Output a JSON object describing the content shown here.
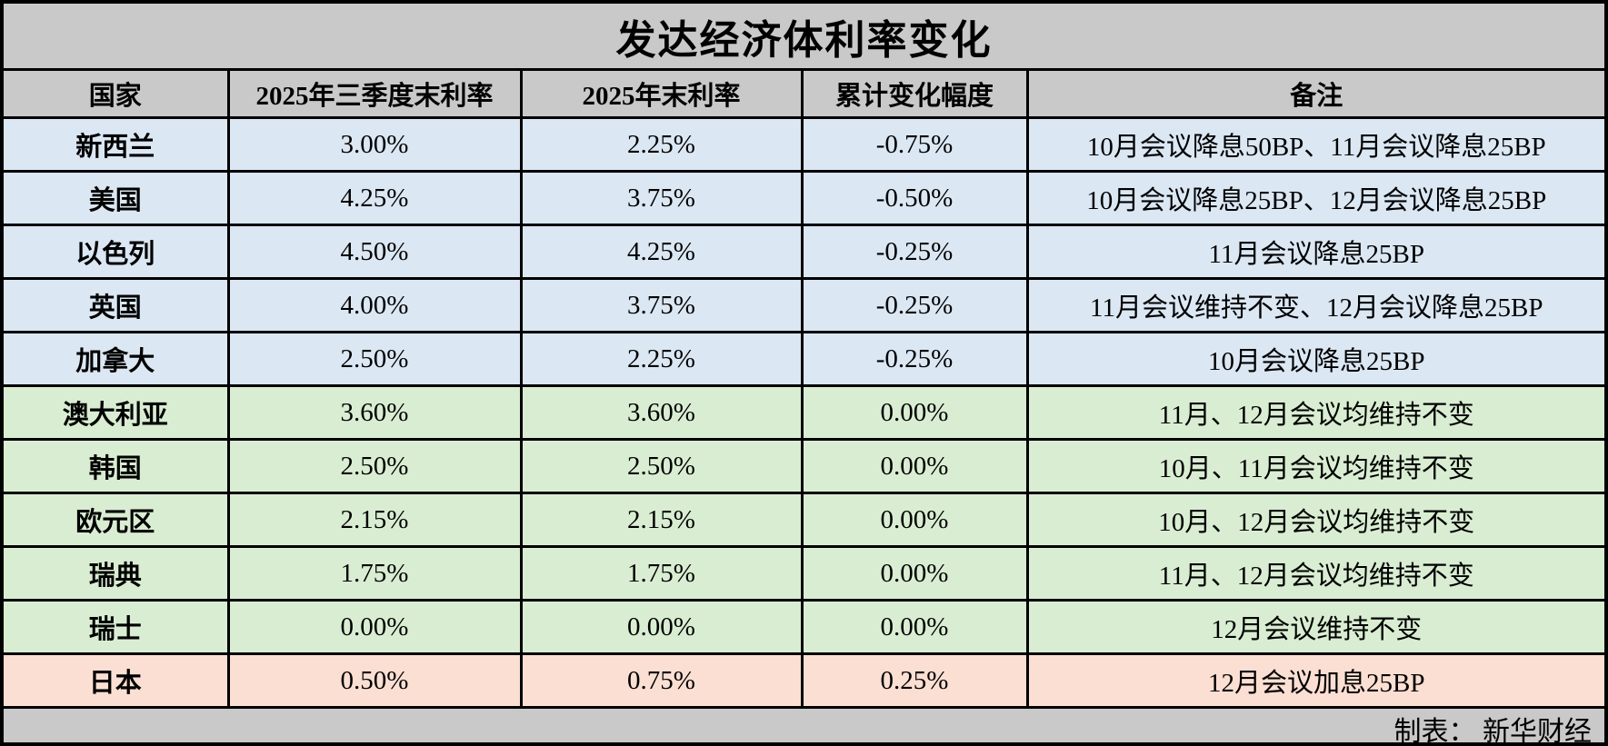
{
  "title": "发达经济体利率变化",
  "footer": {
    "credit": "制表： 新华财经"
  },
  "colors": {
    "frame_and_header_bg": "#c9c9c9",
    "rate_cut_row_bg": "#dbe7f3",
    "rate_hold_row_bg": "#d9edd2",
    "rate_hike_row_bg": "#fcdfd3",
    "border": "#000000",
    "text": "#000000"
  },
  "table": {
    "headers": [
      "国家",
      "2025年三季度末利率",
      "2025年末利率",
      "累计变化幅度",
      "备注"
    ],
    "rows": [
      {
        "country": "新西兰",
        "q3_rate": "3.00%",
        "year_end_rate": "2.25%",
        "change": "-0.75%",
        "note": "10月会议降息50BP、11月会议降息25BP",
        "group": "cut"
      },
      {
        "country": "美国",
        "q3_rate": "4.25%",
        "year_end_rate": "3.75%",
        "change": "-0.50%",
        "note": "10月会议降息25BP、12月会议降息25BP",
        "group": "cut"
      },
      {
        "country": "以色列",
        "q3_rate": "4.50%",
        "year_end_rate": "4.25%",
        "change": "-0.25%",
        "note": "11月会议降息25BP",
        "group": "cut"
      },
      {
        "country": "英国",
        "q3_rate": "4.00%",
        "year_end_rate": "3.75%",
        "change": "-0.25%",
        "note": "11月会议维持不变、12月会议降息25BP",
        "group": "cut"
      },
      {
        "country": "加拿大",
        "q3_rate": "2.50%",
        "year_end_rate": "2.25%",
        "change": "-0.25%",
        "note": "10月会议降息25BP",
        "group": "cut"
      },
      {
        "country": "澳大利亚",
        "q3_rate": "3.60%",
        "year_end_rate": "3.60%",
        "change": "0.00%",
        "note": "11月、12月会议均维持不变",
        "group": "hold"
      },
      {
        "country": "韩国",
        "q3_rate": "2.50%",
        "year_end_rate": "2.50%",
        "change": "0.00%",
        "note": "10月、11月会议均维持不变",
        "group": "hold"
      },
      {
        "country": "欧元区",
        "q3_rate": "2.15%",
        "year_end_rate": "2.15%",
        "change": "0.00%",
        "note": "10月、12月会议均维持不变",
        "group": "hold"
      },
      {
        "country": "瑞典",
        "q3_rate": "1.75%",
        "year_end_rate": "1.75%",
        "change": "0.00%",
        "note": "11月、12月会议均维持不变",
        "group": "hold"
      },
      {
        "country": "瑞士",
        "q3_rate": "0.00%",
        "year_end_rate": "0.00%",
        "change": "0.00%",
        "note": "12月会议维持不变",
        "group": "hold"
      },
      {
        "country": "日本",
        "q3_rate": "0.50%",
        "year_end_rate": "0.75%",
        "change": "0.25%",
        "note": "12月会议加息25BP",
        "group": "hike"
      }
    ]
  },
  "chart_data": {
    "type": "table",
    "title": "发达经济体利率变化",
    "columns": [
      "国家",
      "2025年三季度末利率",
      "2025年末利率",
      "累计变化幅度",
      "备注"
    ],
    "rows": [
      [
        "新西兰",
        "3.00%",
        "2.25%",
        "-0.75%",
        "10月会议降息50BP、11月会议降息25BP"
      ],
      [
        "美国",
        "4.25%",
        "3.75%",
        "-0.50%",
        "10月会议降息25BP、12月会议降息25BP"
      ],
      [
        "以色列",
        "4.50%",
        "4.25%",
        "-0.25%",
        "11月会议降息25BP"
      ],
      [
        "英国",
        "4.00%",
        "3.75%",
        "-0.25%",
        "11月会议维持不变、12月会议降息25BP"
      ],
      [
        "加拿大",
        "2.50%",
        "2.25%",
        "-0.25%",
        "10月会议降息25BP"
      ],
      [
        "澳大利亚",
        "3.60%",
        "3.60%",
        "0.00%",
        "11月、12月会议均维持不变"
      ],
      [
        "韩国",
        "2.50%",
        "2.50%",
        "0.00%",
        "10月、11月会议均维持不变"
      ],
      [
        "欧元区",
        "2.15%",
        "2.15%",
        "0.00%",
        "10月、12月会议均维持不变"
      ],
      [
        "瑞典",
        "1.75%",
        "1.75%",
        "0.00%",
        "11月、12月会议均维持不变"
      ],
      [
        "瑞士",
        "0.00%",
        "0.00%",
        "0.00%",
        "12月会议维持不变"
      ],
      [
        "日本",
        "0.50%",
        "0.75%",
        "0.25%",
        "12月会议加息25BP"
      ]
    ],
    "numeric": {
      "q3_2025_rate_pct": [
        3.0,
        4.25,
        4.5,
        4.0,
        2.5,
        3.6,
        2.5,
        2.15,
        1.75,
        0.0,
        0.5
      ],
      "end_2025_rate_pct": [
        2.25,
        3.75,
        4.25,
        3.75,
        2.25,
        3.6,
        2.5,
        2.15,
        1.75,
        0.0,
        0.75
      ],
      "cumulative_change_pct": [
        -0.75,
        -0.5,
        -0.25,
        -0.25,
        -0.25,
        0.0,
        0.0,
        0.0,
        0.0,
        0.0,
        0.25
      ]
    },
    "row_color_groups": {
      "cut_rows_0_to_4": "light-blue",
      "hold_rows_5_to_9": "light-green",
      "hike_row_10": "light-orange"
    },
    "source_credit": "制表： 新华财经"
  }
}
